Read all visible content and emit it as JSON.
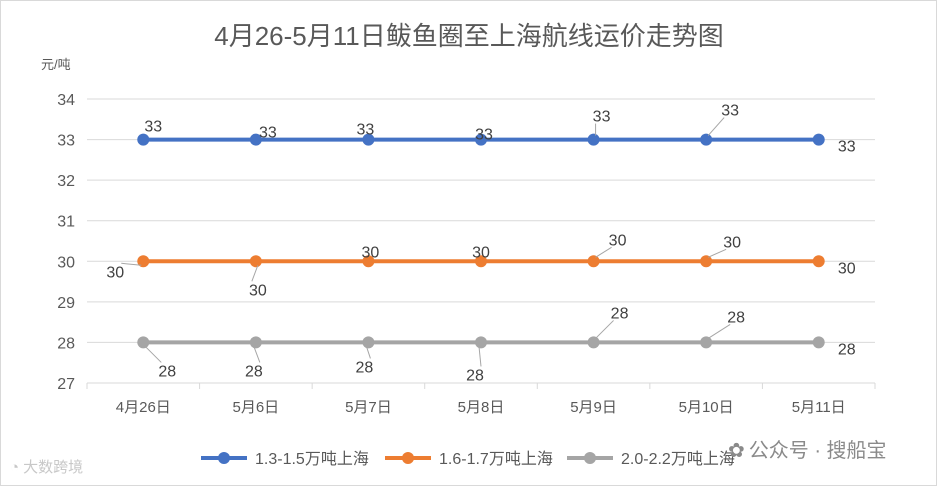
{
  "chart_data": {
    "type": "line",
    "title": "4月26-5月11日鲅鱼圈至上海航线运价走势图",
    "ylabel": "元/吨",
    "xlabel": "",
    "categories": [
      "4月26日",
      "5月6日",
      "5月7日",
      "5月8日",
      "5月9日",
      "5月10日",
      "5月11日"
    ],
    "ylim": [
      27,
      34
    ],
    "yticks": [
      27,
      28,
      29,
      30,
      31,
      32,
      33,
      34
    ],
    "grid": true,
    "legend": "bottom",
    "series": [
      {
        "name": "1.3-1.5万吨上海",
        "color": "#4472c4",
        "values": [
          33,
          33,
          33,
          33,
          33,
          33,
          33
        ]
      },
      {
        "name": "1.6-1.7万吨上海",
        "color": "#ed7d31",
        "values": [
          30,
          30,
          30,
          30,
          30,
          30,
          30
        ]
      },
      {
        "name": "2.0-2.2万吨上海",
        "color": "#a5a5a5",
        "values": [
          28,
          28,
          28,
          28,
          28,
          28,
          28
        ]
      }
    ]
  },
  "watermarks": {
    "left": "大数跨境",
    "right": "公众号 · 搜船宝",
    "left_icon": "weibo-icon",
    "right_icon": "wechat-icon"
  }
}
